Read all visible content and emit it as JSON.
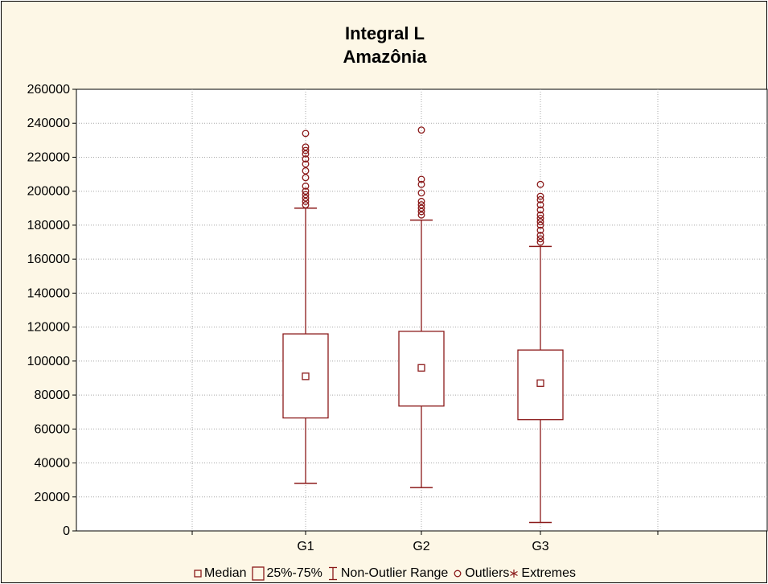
{
  "chart_data": {
    "type": "box",
    "title": "Integral L",
    "subtitle": "Amazônia",
    "ylim": [
      0,
      260000
    ],
    "yticks": [
      0,
      20000,
      40000,
      60000,
      80000,
      100000,
      120000,
      140000,
      160000,
      180000,
      200000,
      220000,
      240000,
      260000
    ],
    "categories": [
      "G1",
      "G2",
      "G3"
    ],
    "boxes": [
      {
        "category": "G1",
        "median": 91000,
        "q1": 66500,
        "q3": 116000,
        "whisker_low": 28000,
        "whisker_high": 190000,
        "outliers": [
          192000,
          194000,
          196000,
          198000,
          200000,
          203000,
          208000,
          212000,
          216000,
          219000,
          222000,
          224000,
          226000,
          234000
        ]
      },
      {
        "category": "G2",
        "median": 96000,
        "q1": 73500,
        "q3": 117500,
        "whisker_low": 25500,
        "whisker_high": 183000,
        "outliers": [
          186000,
          188000,
          190000,
          192000,
          194000,
          199000,
          204000,
          207000,
          236000
        ]
      },
      {
        "category": "G3",
        "median": 87000,
        "q1": 65500,
        "q3": 106500,
        "whisker_low": 5000,
        "whisker_high": 167500,
        "outliers": [
          170000,
          172000,
          174000,
          177000,
          180000,
          182000,
          184000,
          186000,
          189000,
          192000,
          195000,
          197000,
          204000
        ]
      }
    ],
    "grid": true,
    "legend": {
      "position": "bottom",
      "entries": [
        "Median",
        "25%-75%",
        "Non-Outlier Range",
        "Outliers",
        "Extremes"
      ]
    }
  },
  "colors": {
    "background": "#fdf7e6",
    "plot_area": "#ffffff",
    "series": "#8b1a1a",
    "grid": "#a8a8a8"
  }
}
